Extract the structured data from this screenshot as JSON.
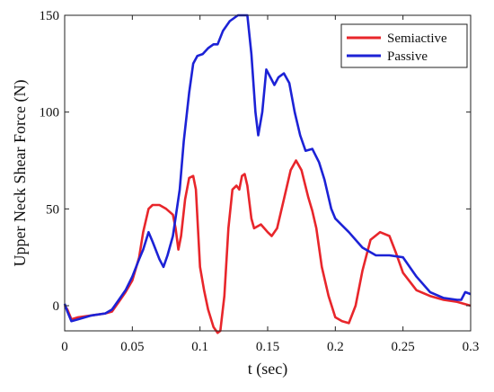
{
  "chart_data": {
    "type": "line",
    "title": "",
    "xlabel": "t (sec)",
    "ylabel": "Upper Neck Shear Force (N)",
    "xlim": [
      0,
      0.3
    ],
    "ylim": [
      -13,
      150
    ],
    "xticks": [
      0,
      0.05,
      0.1,
      0.15,
      0.2,
      0.25,
      0.3
    ],
    "xtick_labels": [
      "0",
      "0.05",
      "0.1",
      "0.15",
      "0.2",
      "0.25",
      "0.3"
    ],
    "yticks": [
      0,
      50,
      100,
      150
    ],
    "ytick_labels": [
      "0",
      "50",
      "100",
      "150"
    ],
    "grid": false,
    "legend_position": "top-right",
    "series": [
      {
        "name": "Semiactive",
        "color": "#e8262b",
        "points": [
          [
            0.0,
            0
          ],
          [
            0.002,
            -2
          ],
          [
            0.005,
            -7
          ],
          [
            0.01,
            -6
          ],
          [
            0.02,
            -5
          ],
          [
            0.03,
            -4
          ],
          [
            0.035,
            -3
          ],
          [
            0.04,
            2
          ],
          [
            0.045,
            7
          ],
          [
            0.05,
            13
          ],
          [
            0.055,
            25
          ],
          [
            0.058,
            38
          ],
          [
            0.062,
            50
          ],
          [
            0.065,
            52
          ],
          [
            0.07,
            52
          ],
          [
            0.075,
            50
          ],
          [
            0.08,
            47
          ],
          [
            0.082,
            40
          ],
          [
            0.084,
            29
          ],
          [
            0.086,
            36
          ],
          [
            0.089,
            55
          ],
          [
            0.092,
            66
          ],
          [
            0.095,
            67
          ],
          [
            0.097,
            60
          ],
          [
            0.1,
            20
          ],
          [
            0.103,
            8
          ],
          [
            0.106,
            -2
          ],
          [
            0.11,
            -11
          ],
          [
            0.113,
            -14
          ],
          [
            0.115,
            -13
          ],
          [
            0.118,
            5
          ],
          [
            0.121,
            40
          ],
          [
            0.124,
            60
          ],
          [
            0.127,
            62
          ],
          [
            0.129,
            60
          ],
          [
            0.131,
            67
          ],
          [
            0.133,
            68
          ],
          [
            0.135,
            62
          ],
          [
            0.138,
            45
          ],
          [
            0.14,
            40
          ],
          [
            0.145,
            42
          ],
          [
            0.15,
            38
          ],
          [
            0.153,
            36
          ],
          [
            0.157,
            40
          ],
          [
            0.162,
            55
          ],
          [
            0.167,
            70
          ],
          [
            0.171,
            75
          ],
          [
            0.175,
            70
          ],
          [
            0.18,
            56
          ],
          [
            0.183,
            49
          ],
          [
            0.186,
            40
          ],
          [
            0.19,
            20
          ],
          [
            0.195,
            5
          ],
          [
            0.2,
            -6
          ],
          [
            0.205,
            -8
          ],
          [
            0.21,
            -9
          ],
          [
            0.215,
            0
          ],
          [
            0.22,
            18
          ],
          [
            0.226,
            34
          ],
          [
            0.233,
            38
          ],
          [
            0.24,
            36
          ],
          [
            0.245,
            27
          ],
          [
            0.25,
            17
          ],
          [
            0.26,
            8
          ],
          [
            0.27,
            5
          ],
          [
            0.28,
            3
          ],
          [
            0.29,
            2
          ],
          [
            0.3,
            0
          ]
        ]
      },
      {
        "name": "Passive",
        "color": "#1c22d6",
        "points": [
          [
            0.0,
            1
          ],
          [
            0.002,
            -3
          ],
          [
            0.005,
            -8
          ],
          [
            0.01,
            -7
          ],
          [
            0.02,
            -5
          ],
          [
            0.03,
            -4
          ],
          [
            0.035,
            -2
          ],
          [
            0.04,
            3
          ],
          [
            0.045,
            8
          ],
          [
            0.05,
            15
          ],
          [
            0.055,
            24
          ],
          [
            0.058,
            29
          ],
          [
            0.062,
            38
          ],
          [
            0.065,
            33
          ],
          [
            0.07,
            24
          ],
          [
            0.073,
            20
          ],
          [
            0.076,
            26
          ],
          [
            0.08,
            36
          ],
          [
            0.085,
            60
          ],
          [
            0.088,
            85
          ],
          [
            0.092,
            110
          ],
          [
            0.095,
            125
          ],
          [
            0.098,
            129
          ],
          [
            0.102,
            130
          ],
          [
            0.106,
            133
          ],
          [
            0.11,
            135
          ],
          [
            0.113,
            135
          ],
          [
            0.117,
            142
          ],
          [
            0.122,
            147
          ],
          [
            0.128,
            150
          ],
          [
            0.132,
            150
          ],
          [
            0.135,
            150
          ],
          [
            0.138,
            130
          ],
          [
            0.141,
            100
          ],
          [
            0.143,
            88
          ],
          [
            0.146,
            100
          ],
          [
            0.149,
            122
          ],
          [
            0.152,
            118
          ],
          [
            0.155,
            114
          ],
          [
            0.158,
            118
          ],
          [
            0.162,
            120
          ],
          [
            0.166,
            115
          ],
          [
            0.17,
            100
          ],
          [
            0.174,
            88
          ],
          [
            0.178,
            80
          ],
          [
            0.183,
            81
          ],
          [
            0.188,
            74
          ],
          [
            0.192,
            65
          ],
          [
            0.197,
            50
          ],
          [
            0.2,
            45
          ],
          [
            0.21,
            38
          ],
          [
            0.22,
            30
          ],
          [
            0.23,
            26
          ],
          [
            0.24,
            26
          ],
          [
            0.25,
            25
          ],
          [
            0.26,
            15
          ],
          [
            0.27,
            7
          ],
          [
            0.28,
            4
          ],
          [
            0.29,
            3
          ],
          [
            0.293,
            3
          ],
          [
            0.296,
            7
          ],
          [
            0.3,
            6
          ]
        ]
      }
    ]
  }
}
